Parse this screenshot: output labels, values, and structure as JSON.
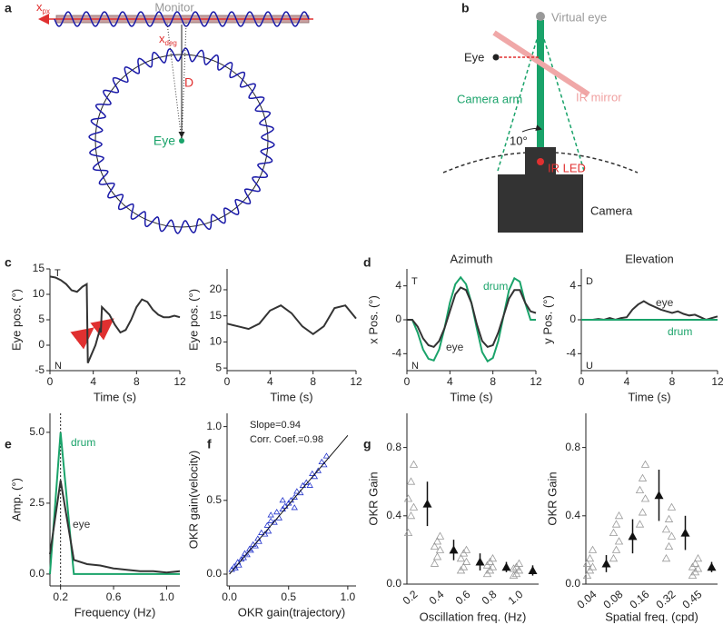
{
  "panel_labels": [
    "a",
    "b",
    "c",
    "d",
    "e",
    "f",
    "g"
  ],
  "diagram_a": {
    "monitor": "Monitor",
    "x_px": "x",
    "x_px_sub": "px",
    "x_deg": "x",
    "x_deg_sub": "deg",
    "distance": "D",
    "eye": "Eye"
  },
  "diagram_b": {
    "virtual_eye": "Virtual eye",
    "eye": "Eye",
    "ir_mirror": "IR mirror",
    "camera_arm": "Camera arm",
    "angle": "10°",
    "ir_led": "IR LED",
    "camera": "Camera"
  },
  "chart_data": [
    {
      "type": "line",
      "xlabel": "Time (s)",
      "ylabel": "Eye pos. (°)",
      "annotations": [
        "T",
        "N"
      ],
      "x": [
        0,
        0.5,
        1,
        1.5,
        2,
        2.5,
        3,
        3.4,
        3.5,
        3.8,
        4.2,
        4.6,
        4.7,
        4.8,
        5.5,
        6,
        6.5,
        7,
        7.5,
        8,
        8.5,
        9,
        9.5,
        10,
        10.5,
        11,
        11.5,
        12
      ],
      "series": [
        {
          "color": "#333333",
          "values": [
            13.5,
            13.3,
            12.8,
            12,
            10.8,
            10.5,
            11.5,
            12,
            -3.5,
            -2,
            0,
            3,
            2.5,
            7.5,
            6,
            4,
            2.5,
            3,
            5,
            7.5,
            9,
            8.5,
            7,
            6,
            5.5,
            5.5,
            5.8,
            5.5
          ]
        }
      ],
      "xlim": [
        0,
        12
      ],
      "xticks": [
        0,
        4,
        8,
        12
      ],
      "ylim": [
        -5,
        15
      ],
      "yticks": [
        -5,
        0,
        5,
        10,
        15
      ]
    },
    {
      "type": "line",
      "xlabel": "Time (s)",
      "ylabel": "Eye pos. (°)",
      "x": [
        0,
        1,
        2,
        3,
        4,
        5,
        6,
        7,
        8,
        9,
        10,
        11,
        12
      ],
      "series": [
        {
          "color": "#333333",
          "values": [
            13.5,
            13,
            12.5,
            13.5,
            16,
            17,
            15.5,
            13,
            11.5,
            13,
            16.5,
            17,
            14.5
          ]
        }
      ],
      "xlim": [
        0,
        12
      ],
      "xticks": [
        0,
        4,
        8,
        12
      ],
      "ylim": [
        4.5,
        24
      ],
      "yticks": [
        5,
        10,
        15,
        20
      ]
    },
    {
      "type": "line",
      "title": "Azimuth",
      "xlabel": "Time (s)",
      "ylabel": "x Pos. (°)",
      "annotations": [
        "T",
        "N"
      ],
      "x": [
        0,
        0.5,
        1,
        1.5,
        2,
        2.5,
        3,
        3.5,
        4,
        4.5,
        5,
        5.5,
        6,
        6.5,
        7,
        7.5,
        8,
        8.5,
        9,
        9.5,
        10,
        10.5,
        11,
        11.5,
        12
      ],
      "series": [
        {
          "name": "drum",
          "color": "#1aa36a",
          "values": [
            0,
            0,
            -1.5,
            -3.5,
            -4.6,
            -4.8,
            -3.5,
            -1,
            2,
            4.2,
            5,
            4.2,
            2,
            -1,
            -3.8,
            -4.9,
            -4.5,
            -2.5,
            0.5,
            3.5,
            4.9,
            4.5,
            2,
            0,
            0
          ]
        },
        {
          "name": "eye",
          "color": "#333333",
          "values": [
            0,
            0,
            -0.8,
            -2.2,
            -3,
            -3.2,
            -2.5,
            -1,
            1,
            3,
            3.8,
            3.5,
            2,
            -0.5,
            -2.5,
            -3.2,
            -3,
            -1.5,
            0.5,
            2.5,
            3.5,
            3.5,
            2,
            1,
            0.8
          ]
        }
      ],
      "xlim": [
        0,
        12
      ],
      "xticks": [
        0,
        4,
        8,
        12
      ],
      "ylim": [
        -6,
        6
      ],
      "yticks": [
        -4,
        0,
        4
      ]
    },
    {
      "type": "line",
      "title": "Elevation",
      "xlabel": "Time (s)",
      "ylabel": "y Pos. (°)",
      "annotations": [
        "D",
        "U"
      ],
      "x": [
        0,
        0.5,
        1,
        1.5,
        2,
        2.5,
        3,
        3.5,
        4,
        4.5,
        5,
        5.5,
        6,
        6.5,
        7,
        7.5,
        8,
        8.5,
        9,
        9.5,
        10,
        10.5,
        11,
        11.5,
        12
      ],
      "series": [
        {
          "name": "eye",
          "color": "#333333",
          "values": [
            0,
            0,
            0,
            0.1,
            0,
            0.2,
            0,
            0.2,
            0.3,
            1.2,
            1.8,
            2.2,
            1.8,
            1.5,
            1.2,
            1,
            0.8,
            1,
            0.7,
            0.5,
            0.6,
            0.3,
            0,
            0.2,
            0.4
          ]
        },
        {
          "name": "drum",
          "color": "#1aa36a",
          "values": [
            0,
            0,
            0,
            0,
            0,
            0,
            0,
            0,
            0,
            0,
            0,
            0,
            0,
            0,
            0,
            0,
            0,
            0,
            0,
            0,
            0,
            0,
            0,
            0,
            0
          ]
        }
      ],
      "xlim": [
        0,
        12
      ],
      "xticks": [
        0,
        4,
        8,
        12
      ],
      "ylim": [
        -6,
        6
      ],
      "yticks": [
        -4,
        0,
        4
      ]
    },
    {
      "type": "line",
      "xlabel": "Frequency (Hz)",
      "ylabel": "Amp. (°)",
      "x": [
        0.12,
        0.2,
        0.3,
        0.4,
        0.5,
        0.6,
        0.7,
        0.8,
        0.9,
        1.0,
        1.1
      ],
      "series": [
        {
          "name": "drum",
          "color": "#1aa36a",
          "values": [
            0,
            5,
            0,
            0,
            0,
            0,
            0,
            0,
            0,
            0,
            0
          ]
        },
        {
          "name": "eye",
          "color": "#333333",
          "values": [
            0.7,
            3.3,
            0.5,
            0.35,
            0.3,
            0.2,
            0.15,
            0.1,
            0.1,
            0.05,
            0.1
          ]
        }
      ],
      "xlim": [
        0.12,
        1.1
      ],
      "xticks": [
        0.2,
        0.6,
        {
          "value": 1,
          "label": "1.0"
        }
      ],
      "ylim": [
        -0.42,
        5.67
      ],
      "yticks": [
        {
          "value": 0,
          "label": "0.0"
        },
        2.5,
        {
          "value": 5,
          "label": "5.0"
        }
      ]
    },
    {
      "type": "scatter",
      "xlabel": "OKR gain(trajectory)",
      "ylabel": "OKR gain(velocity)",
      "annotations": [
        "Slope=0.94",
        "Corr. Coef.=0.98"
      ],
      "color": "#2233cc",
      "x": [
        0.02,
        0.04,
        0.05,
        0.07,
        0.08,
        0.1,
        0.12,
        0.13,
        0.15,
        0.17,
        0.18,
        0.2,
        0.22,
        0.24,
        0.25,
        0.27,
        0.3,
        0.32,
        0.33,
        0.35,
        0.38,
        0.4,
        0.42,
        0.45,
        0.47,
        0.5,
        0.52,
        0.55,
        0.57,
        0.6,
        0.62,
        0.65,
        0.68,
        0.7,
        0.72,
        0.75,
        0.78,
        0.8,
        0.82,
        0.35,
        0.45,
        0.55
      ],
      "values": [
        0.03,
        0.05,
        0.04,
        0.08,
        0.06,
        0.1,
        0.11,
        0.14,
        0.13,
        0.17,
        0.16,
        0.2,
        0.19,
        0.24,
        0.22,
        0.28,
        0.27,
        0.33,
        0.29,
        0.36,
        0.35,
        0.42,
        0.38,
        0.44,
        0.46,
        0.48,
        0.5,
        0.52,
        0.56,
        0.55,
        0.6,
        0.62,
        0.6,
        0.68,
        0.66,
        0.7,
        0.76,
        0.74,
        0.8,
        0.4,
        0.5,
        0.45
      ],
      "fit": {
        "x": [
          0,
          1
        ],
        "values": [
          0,
          0.94
        ]
      },
      "xlim": [
        -0.02,
        1.07
      ],
      "xticks": [
        {
          "value": 0,
          "label": "0.0"
        },
        0.5,
        {
          "value": 1,
          "label": "1.0"
        }
      ],
      "ylim": [
        -0.08,
        1.09
      ],
      "yticks": [
        {
          "value": 0,
          "label": "0.0"
        },
        0.5,
        {
          "value": 1,
          "label": "1.0"
        }
      ]
    },
    {
      "type": "errorbar",
      "xlabel": "Oscillation freq. (Hz)",
      "ylabel": "OKR Gain",
      "categories": [
        "0.2",
        "0.4",
        "0.6",
        "0.8",
        "1.0"
      ],
      "points": [
        [
          0.3,
          0.4,
          0.45,
          0.5,
          0.6,
          0.7
        ],
        [
          0.12,
          0.16,
          0.2,
          0.22,
          0.25,
          0.28
        ],
        [
          0.08,
          0.1,
          0.13,
          0.15,
          0.18,
          0.2
        ],
        [
          0.06,
          0.08,
          0.1,
          0.11,
          0.13,
          0.15
        ],
        [
          0.05,
          0.06,
          0.08,
          0.09,
          0.1,
          0.12
        ]
      ],
      "values": [
        0.47,
        0.2,
        0.13,
        0.1,
        0.08
      ],
      "errors": [
        0.13,
        0.06,
        0.05,
        0.03,
        0.03
      ],
      "ylim": [
        0,
        1
      ],
      "yticks": [
        {
          "value": 0,
          "label": "0.0"
        },
        0.4,
        0.8
      ]
    },
    {
      "type": "errorbar",
      "xlabel": "Spatial freq. (cpd)",
      "ylabel": "OKR Gain",
      "categories": [
        "0.04",
        "0.08",
        "0.16",
        "0.32",
        "0.45"
      ],
      "points": [
        [
          0.05,
          0.08,
          0.1,
          0.12,
          0.15,
          0.2
        ],
        [
          0.15,
          0.2,
          0.25,
          0.3,
          0.35,
          0.4
        ],
        [
          0.35,
          0.42,
          0.5,
          0.55,
          0.62,
          0.7
        ],
        [
          0.15,
          0.22,
          0.28,
          0.32,
          0.38,
          0.45
        ],
        [
          0.05,
          0.07,
          0.09,
          0.1,
          0.12,
          0.15
        ]
      ],
      "values": [
        0.12,
        0.28,
        0.52,
        0.3,
        0.1
      ],
      "errors": [
        0.05,
        0.1,
        0.15,
        0.1,
        0.03
      ],
      "ylim": [
        0,
        1
      ],
      "yticks": [
        {
          "value": 0,
          "label": "0.0"
        },
        0.4,
        0.8
      ]
    }
  ]
}
